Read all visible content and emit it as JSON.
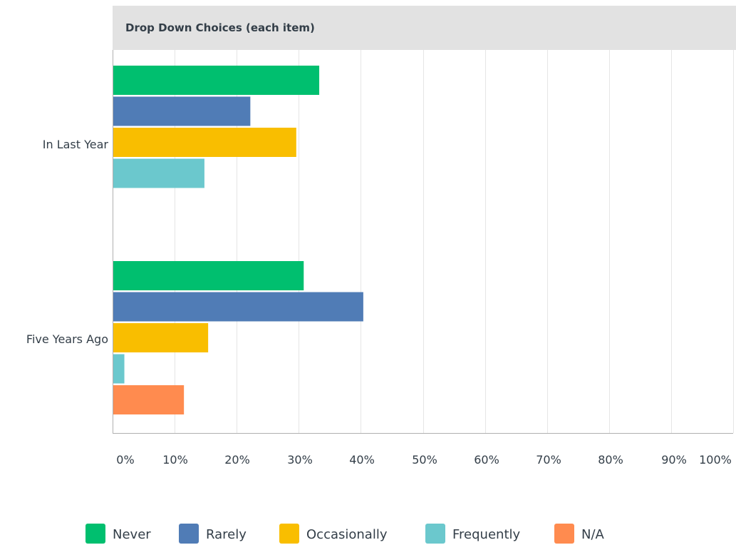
{
  "chart_data": {
    "type": "bar",
    "orientation": "horizontal",
    "title": "Drop Down Choices (each item)",
    "categories": [
      "In Last Year",
      "Five Years Ago"
    ],
    "series": [
      {
        "name": "Never",
        "color": "#00bf6f",
        "values": [
          33.3,
          30.8
        ]
      },
      {
        "name": "Rarely",
        "color": "#507cb6",
        "values": [
          22.2,
          40.4
        ]
      },
      {
        "name": "Occasionally",
        "color": "#f9be00",
        "values": [
          29.6,
          15.4
        ]
      },
      {
        "name": "Frequently",
        "color": "#6bc8cd",
        "values": [
          14.8,
          1.9
        ]
      },
      {
        "name": "N/A",
        "color": "#ff8b4f",
        "values": [
          0,
          11.5
        ]
      }
    ],
    "xlim": [
      0,
      100
    ],
    "x_ticks": [
      "0%",
      "10%",
      "20%",
      "30%",
      "40%",
      "50%",
      "60%",
      "70%",
      "80%",
      "90%",
      "100%"
    ],
    "grid": true,
    "legend_position": "bottom"
  }
}
